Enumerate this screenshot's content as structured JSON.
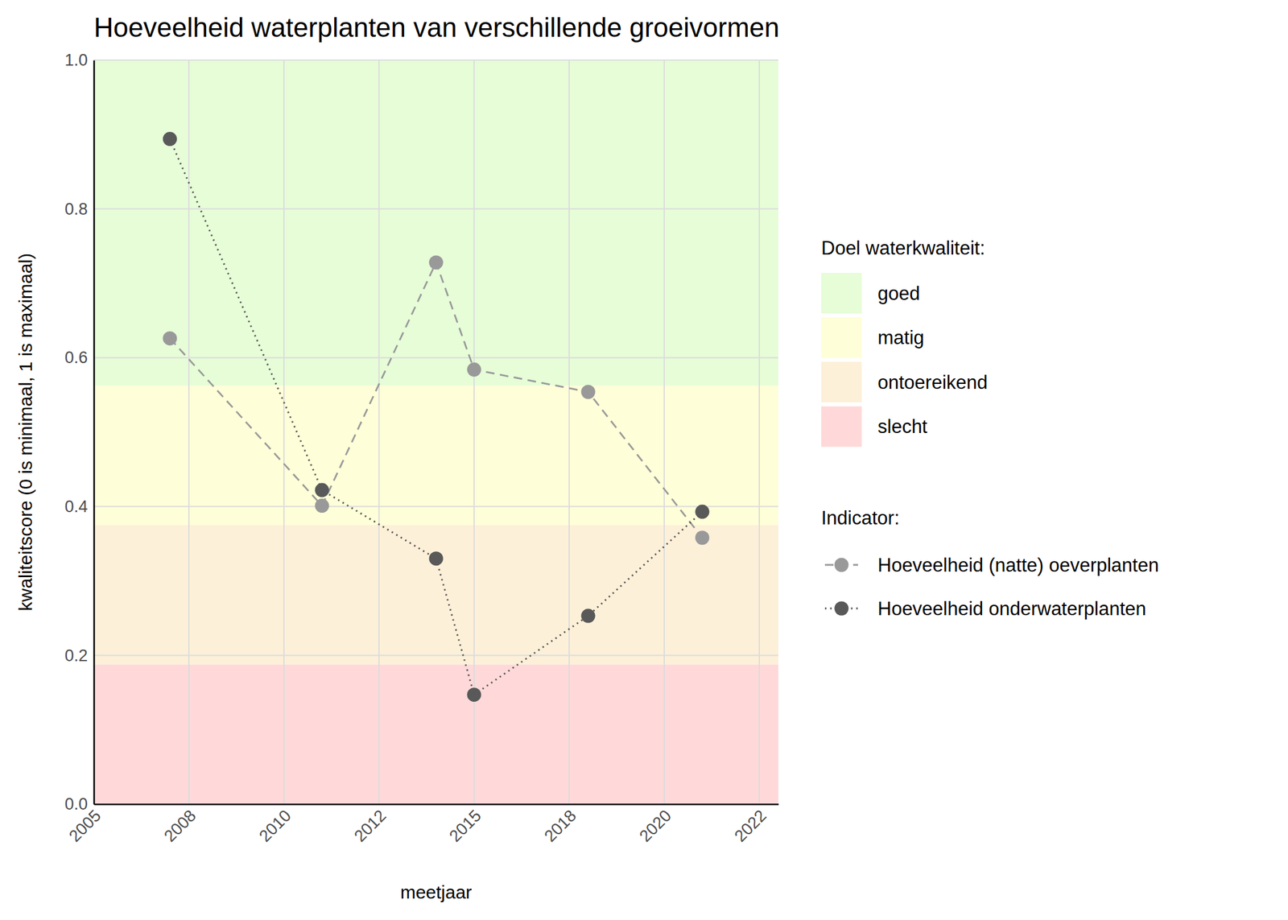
{
  "chart_data": {
    "type": "line",
    "title": "Hoeveelheid waterplanten van verschillende groeivormen",
    "x_label": "meetjaar",
    "y_label": "kwaliteitscore (0 is minimaal, 1 is maximaal)",
    "x": [
      2007,
      2011,
      2014,
      2015,
      2018,
      2021
    ],
    "series": [
      {
        "name": "Hoeveelheid (natte) oeverplanten",
        "color": "#999999",
        "marker": "circle",
        "line_style": "dashed",
        "values": [
          0.626,
          0.401,
          0.728,
          0.584,
          0.554,
          0.358
        ]
      },
      {
        "name": "Hoeveelheid onderwaterplanten",
        "color": "#595959",
        "marker": "circle",
        "line_style": "dotted",
        "values": [
          0.894,
          0.422,
          0.33,
          0.147,
          0.253,
          0.393
        ]
      }
    ],
    "xlim": [
      2005,
      2023
    ],
    "xticks": [
      2005,
      {
        "value": 2007.5,
        "label": "2008"
      },
      2010,
      {
        "value": 2012.5,
        "label": "2012"
      },
      2015,
      {
        "value": 2017.5,
        "label": "2018"
      },
      2020,
      {
        "value": 2022.5,
        "label": "2022"
      }
    ],
    "ylim": [
      0,
      1
    ],
    "yticks": [
      {
        "value": 0,
        "label": "0.0"
      },
      0.2,
      0.4,
      0.6,
      0.8,
      {
        "value": 1,
        "label": "1.0"
      }
    ],
    "grid": true,
    "legend": "right",
    "bands_title": "Doel waterkwaliteit:",
    "bands": [
      {
        "name": "goed",
        "color": "#e6fdd7",
        "from": 0.5625,
        "to": 1
      },
      {
        "name": "matig",
        "color": "#fefed8",
        "from": 0.375,
        "to": 0.5625
      },
      {
        "name": "ontoereikend",
        "color": "#fdf0d8",
        "from": 0.1875,
        "to": 0.375
      },
      {
        "name": "slecht",
        "color": "#ffd9d9",
        "from": 0,
        "to": 0.1875
      }
    ],
    "legend_title": "Indicator:"
  }
}
